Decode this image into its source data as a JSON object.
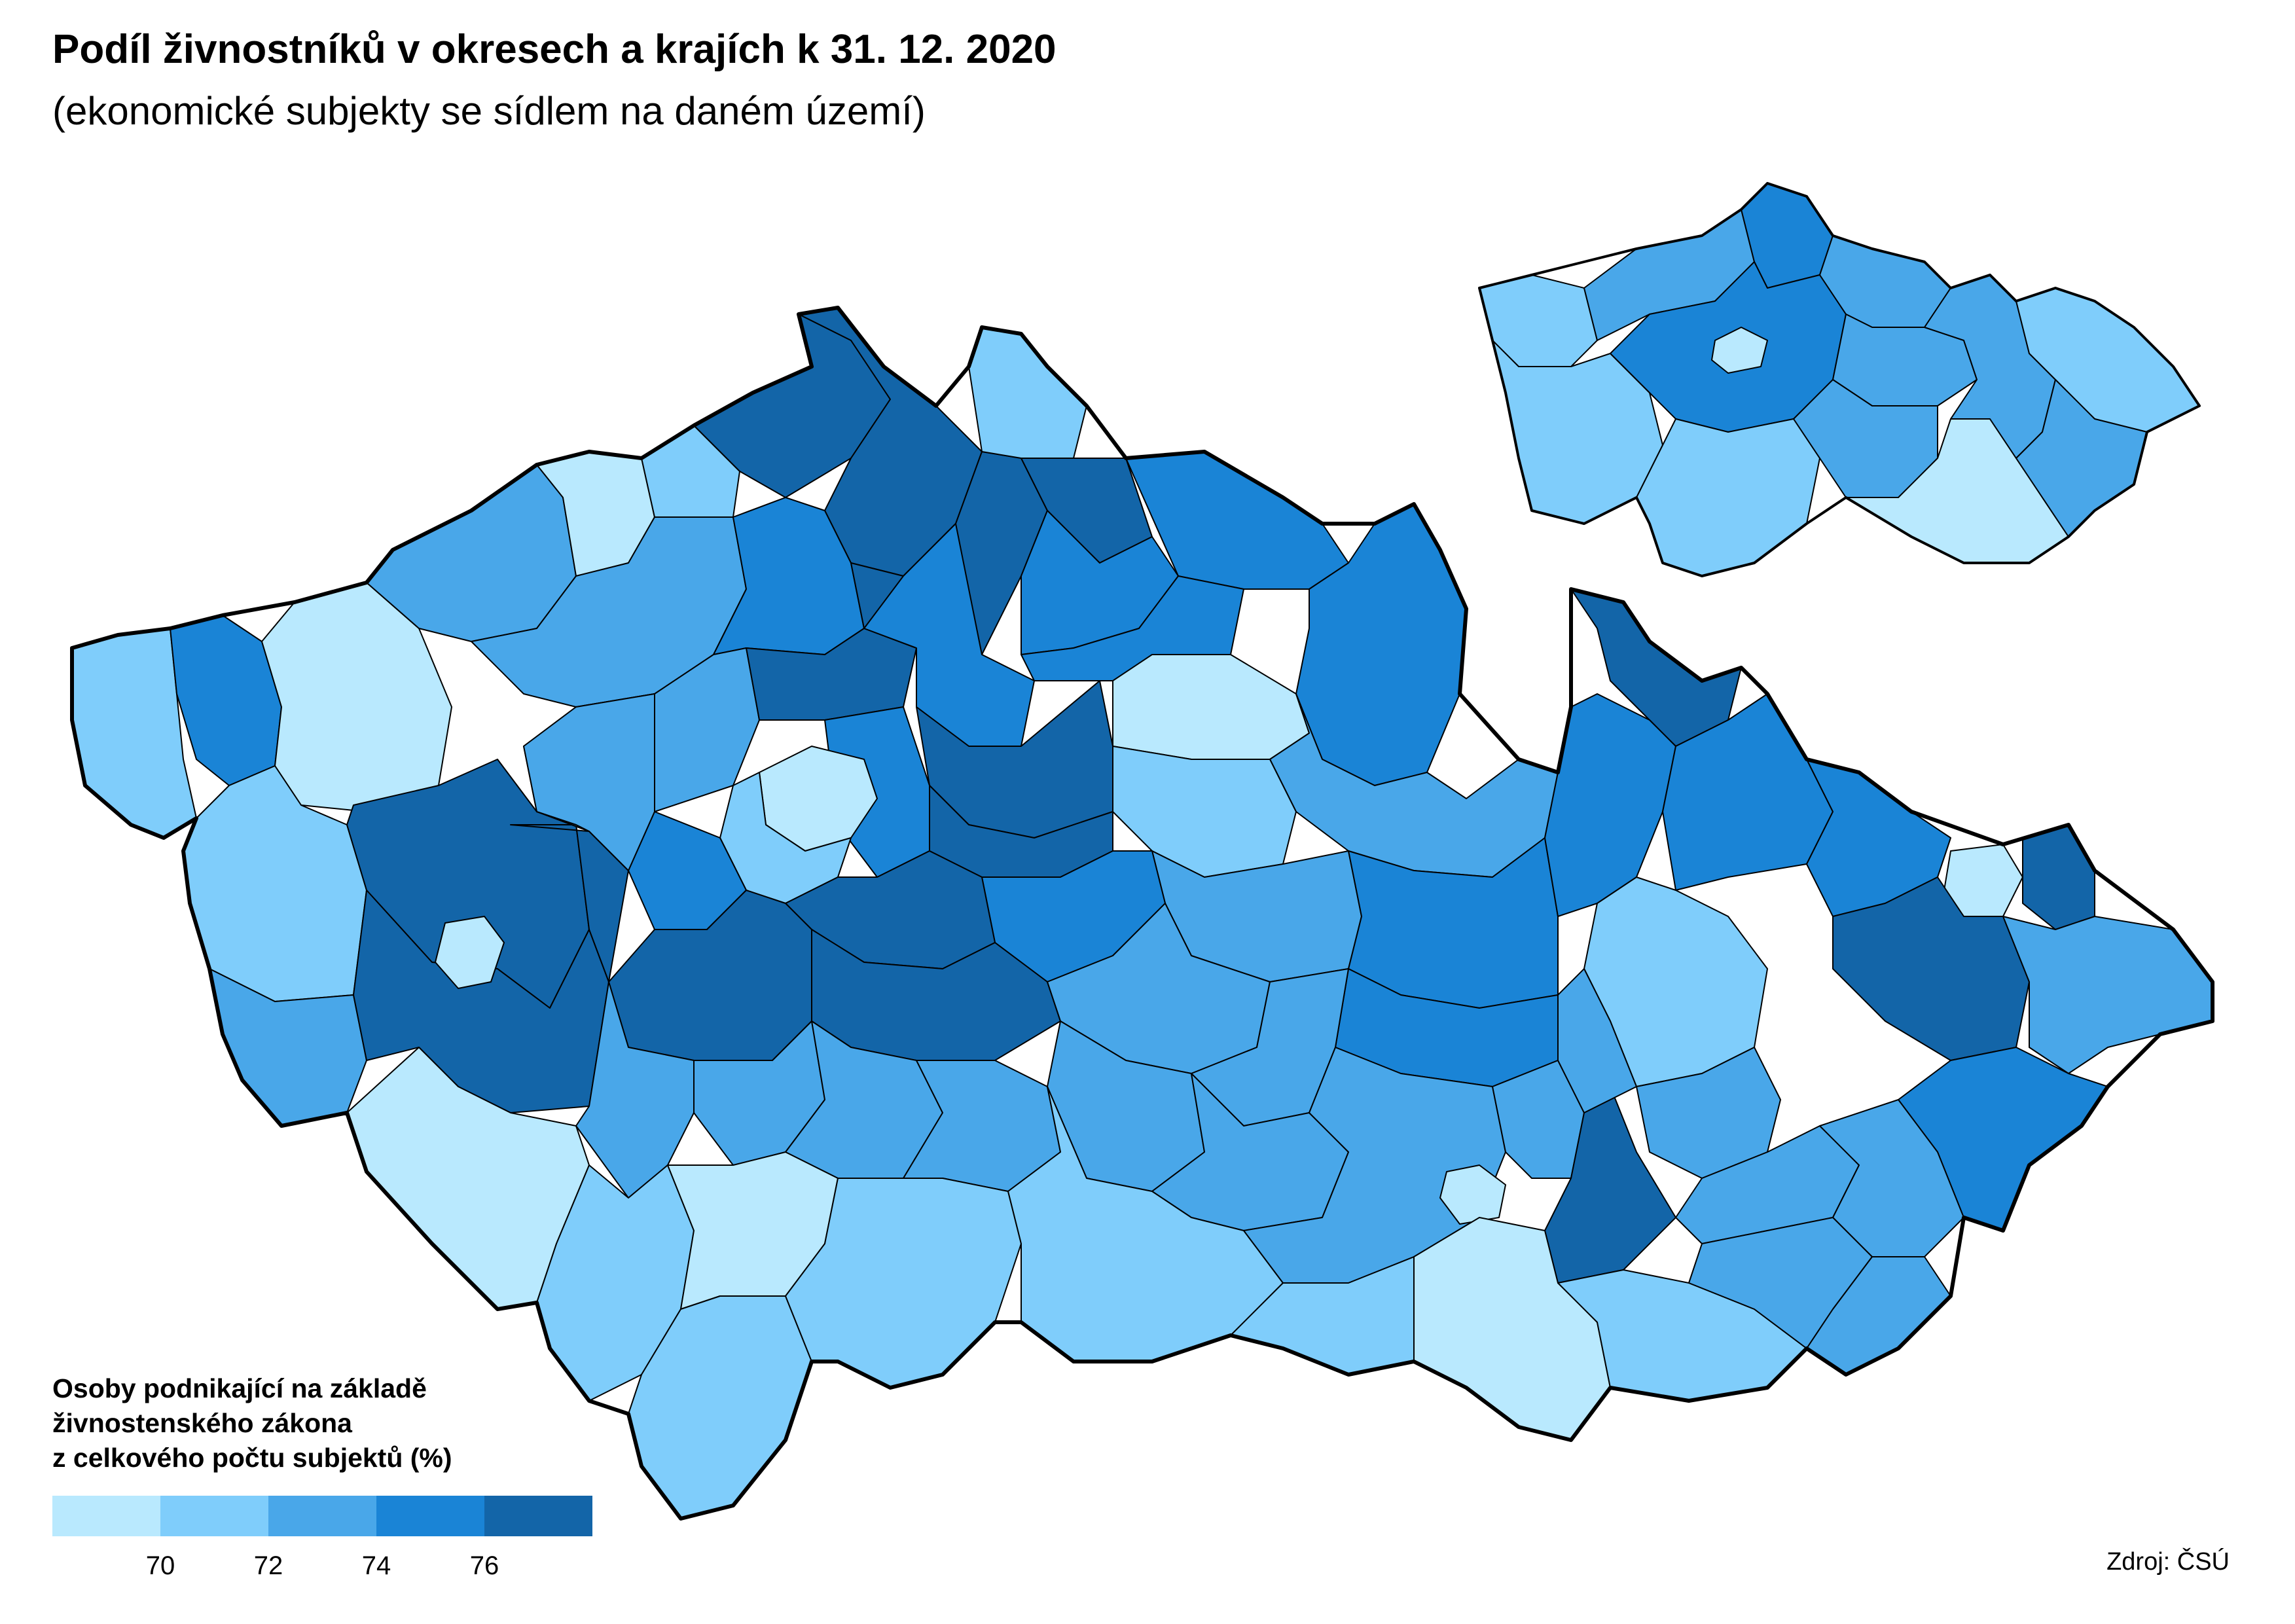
{
  "header": {
    "title": "Podíl živnostníků v okresech a krajích k 31. 12. 2020",
    "subtitle": "(ekonomické subjekty se sídlem na daném území)"
  },
  "legend": {
    "title": "Osoby podnikající na základě\nživnostenského zákona\nz celkového počtu subjektů (%)",
    "classes": [
      {
        "color": "#b9e9fe"
      },
      {
        "color": "#7fcdfb"
      },
      {
        "color": "#49a7e9"
      },
      {
        "color": "#1a84d6"
      },
      {
        "color": "#1365a8"
      }
    ],
    "ticks": [
      "70",
      "72",
      "74",
      "76"
    ]
  },
  "source": "Zdroj: ČSÚ"
}
